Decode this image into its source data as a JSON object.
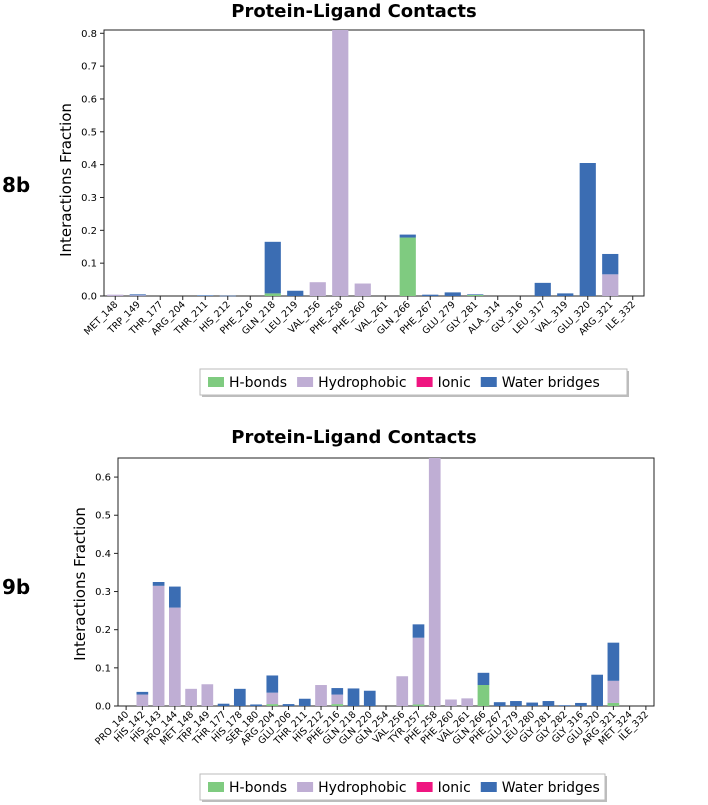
{
  "colors": {
    "hbonds": "#7fcb80",
    "hydrophobic": "#bfaed4",
    "ionic": "#ef1580",
    "water": "#3b6db3"
  },
  "chart_data": [
    {
      "type": "bar",
      "stacked": true,
      "panel_label": "8b",
      "title": "Protein-Ligand Contacts",
      "ylabel": "Interactions Fraction",
      "xlabel": "",
      "ylim": [
        0,
        0.81
      ],
      "yticks": [
        0.0,
        0.1,
        0.2,
        0.3,
        0.4,
        0.5,
        0.6,
        0.7,
        0.8
      ],
      "legend": "bottom-center",
      "legend_entries": [
        "H-bonds",
        "Hydrophobic",
        "Ionic",
        "Water bridges"
      ],
      "categories": [
        "MET_148",
        "TRP_149",
        "THR_177",
        "ARG_204",
        "THR_211",
        "HIS_212",
        "PHE_216",
        "GLN_218",
        "LEU_219",
        "VAL_256",
        "PHE_258",
        "PHE_260",
        "VAL_261",
        "GLN_266",
        "PHE_267",
        "GLU_279",
        "GLY_281",
        "ALA_314",
        "GLY_316",
        "LEU_317",
        "VAL_319",
        "GLU_320",
        "ARG_321",
        "ILE_332"
      ],
      "series": [
        {
          "name": "H-bonds",
          "values": [
            0,
            0,
            0,
            0,
            0,
            0,
            0,
            0.008,
            0,
            0,
            0,
            0,
            0,
            0.178,
            0,
            0,
            0.003,
            0,
            0,
            0,
            0,
            0,
            0,
            0
          ]
        },
        {
          "name": "Hydrophobic",
          "values": [
            0.004,
            0.002,
            0,
            0,
            0,
            0,
            0,
            0,
            0,
            0.042,
            0.81,
            0.038,
            0,
            0,
            0,
            0,
            0,
            0,
            0,
            0,
            0,
            0,
            0.066,
            0
          ]
        },
        {
          "name": "Ionic",
          "values": [
            0,
            0,
            0,
            0,
            0,
            0,
            0,
            0,
            0,
            0,
            0,
            0,
            0,
            0,
            0,
            0,
            0,
            0,
            0,
            0,
            0,
            0,
            0,
            0
          ]
        },
        {
          "name": "Water bridges",
          "values": [
            0,
            0.003,
            0,
            0,
            0.002,
            0.001,
            0,
            0.157,
            0.016,
            0,
            0,
            0,
            0,
            0.009,
            0.004,
            0.011,
            0.002,
            0,
            0,
            0.04,
            0.008,
            0.405,
            0.062,
            0
          ]
        }
      ]
    },
    {
      "type": "bar",
      "stacked": true,
      "panel_label": "9b",
      "title": "Protein-Ligand Contacts",
      "ylabel": "Interactions Fraction",
      "xlabel": "",
      "ylim": [
        0,
        0.65
      ],
      "yticks": [
        0.0,
        0.1,
        0.2,
        0.3,
        0.4,
        0.5,
        0.6
      ],
      "legend": "bottom-center",
      "legend_entries": [
        "H-bonds",
        "Hydrophobic",
        "Ionic",
        "Water bridges"
      ],
      "categories": [
        "PRO_140",
        "HIS_142",
        "HIS_143",
        "PRO_144",
        "MET_148",
        "TRP_149",
        "THR_177",
        "HIS_178",
        "SER_180",
        "ARG_204",
        "GLU_206",
        "THR_211",
        "HIS_212",
        "PHE_216",
        "GLN_218",
        "GLN_220",
        "GLN_254",
        "VAL_256",
        "TYR_257",
        "PHE_258",
        "PHE_260",
        "VAL_261",
        "GLN_266",
        "PHE_267",
        "GLU_279",
        "LEU_280",
        "GLY_281",
        "GLY_282",
        "GLY_316",
        "GLU_320",
        "ARG_321",
        "MET_324",
        "ILE_332"
      ],
      "series": [
        {
          "name": "H-bonds",
          "values": [
            0,
            0,
            0,
            0,
            0,
            0,
            0,
            0,
            0,
            0.005,
            0,
            0,
            0,
            0.005,
            0,
            0,
            0,
            0,
            0.004,
            0,
            0,
            0,
            0.055,
            0,
            0,
            0,
            0,
            0,
            0,
            0,
            0.008,
            0,
            0
          ]
        },
        {
          "name": "Hydrophobic",
          "values": [
            0,
            0.03,
            0.315,
            0.258,
            0.045,
            0.057,
            0,
            0,
            0,
            0.03,
            0,
            0,
            0.055,
            0.025,
            0,
            0,
            0,
            0.078,
            0.175,
            0.65,
            0.017,
            0.02,
            0,
            0,
            0,
            0,
            0,
            0,
            0,
            0,
            0.058,
            0,
            0
          ]
        },
        {
          "name": "Ionic",
          "values": [
            0,
            0,
            0,
            0,
            0,
            0,
            0,
            0,
            0,
            0,
            0,
            0,
            0,
            0,
            0,
            0,
            0,
            0,
            0,
            0,
            0,
            0,
            0,
            0,
            0,
            0,
            0,
            0,
            0,
            0,
            0,
            0,
            0
          ]
        },
        {
          "name": "Water bridges",
          "values": [
            0,
            0.007,
            0.01,
            0.055,
            0,
            0,
            0.006,
            0.045,
            0.004,
            0.045,
            0.005,
            0.019,
            0,
            0.017,
            0.046,
            0.04,
            0,
            0,
            0.035,
            0,
            0,
            0,
            0.032,
            0.01,
            0.013,
            0.009,
            0.013,
            0.002,
            0.008,
            0.082,
            0.1,
            0,
            0
          ]
        }
      ]
    }
  ]
}
